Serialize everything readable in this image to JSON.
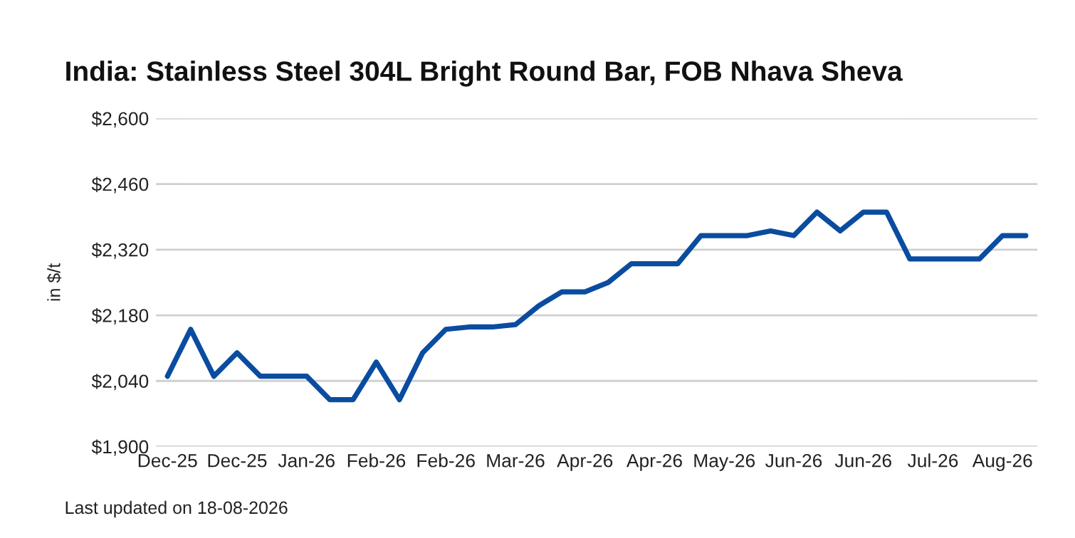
{
  "chart_data": {
    "type": "line",
    "title": "India: Stainless Steel 304L Bright Round Bar, FOB Nhava Sheva",
    "ylabel": "in $/t",
    "categories": [
      "Dec-25",
      null,
      null,
      "Dec-25",
      null,
      null,
      "Jan-26",
      null,
      null,
      "Feb-26",
      null,
      null,
      "Feb-26",
      null,
      null,
      "Mar-26",
      null,
      null,
      "Apr-26",
      null,
      null,
      "Apr-26",
      null,
      null,
      "May-26",
      null,
      null,
      "Jun-26",
      null,
      null,
      "Jun-26",
      null,
      null,
      "Jul-26",
      null,
      null,
      "Aug-26",
      null
    ],
    "series": [
      {
        "color": "#0a4ca0",
        "values": [
          2050,
          2150,
          2050,
          2100,
          2050,
          2050,
          2050,
          2000,
          2000,
          2080,
          2000,
          2100,
          2150,
          2155,
          2155,
          2160,
          2200,
          2230,
          2230,
          2250,
          2290,
          2290,
          2290,
          2350,
          2350,
          2350,
          2360,
          2350,
          2400,
          2360,
          2400,
          2400,
          2300,
          2300,
          2300,
          2300,
          2350,
          2350
        ]
      }
    ],
    "ylim": [
      1900,
      2600
    ],
    "yticks": [
      {
        "value": 1900,
        "label": "$1,900"
      },
      {
        "value": 2040,
        "label": "$2,040"
      },
      {
        "value": 2180,
        "label": "$2,180"
      },
      {
        "value": 2320,
        "label": "$2,320"
      },
      {
        "value": 2460,
        "label": "$2,460"
      },
      {
        "value": 2600,
        "label": "$2,600"
      }
    ],
    "grid": "y",
    "legend": false,
    "marker": "none",
    "line_style": "solid",
    "annotations": [
      "Last updated on 18-08-2026"
    ]
  }
}
